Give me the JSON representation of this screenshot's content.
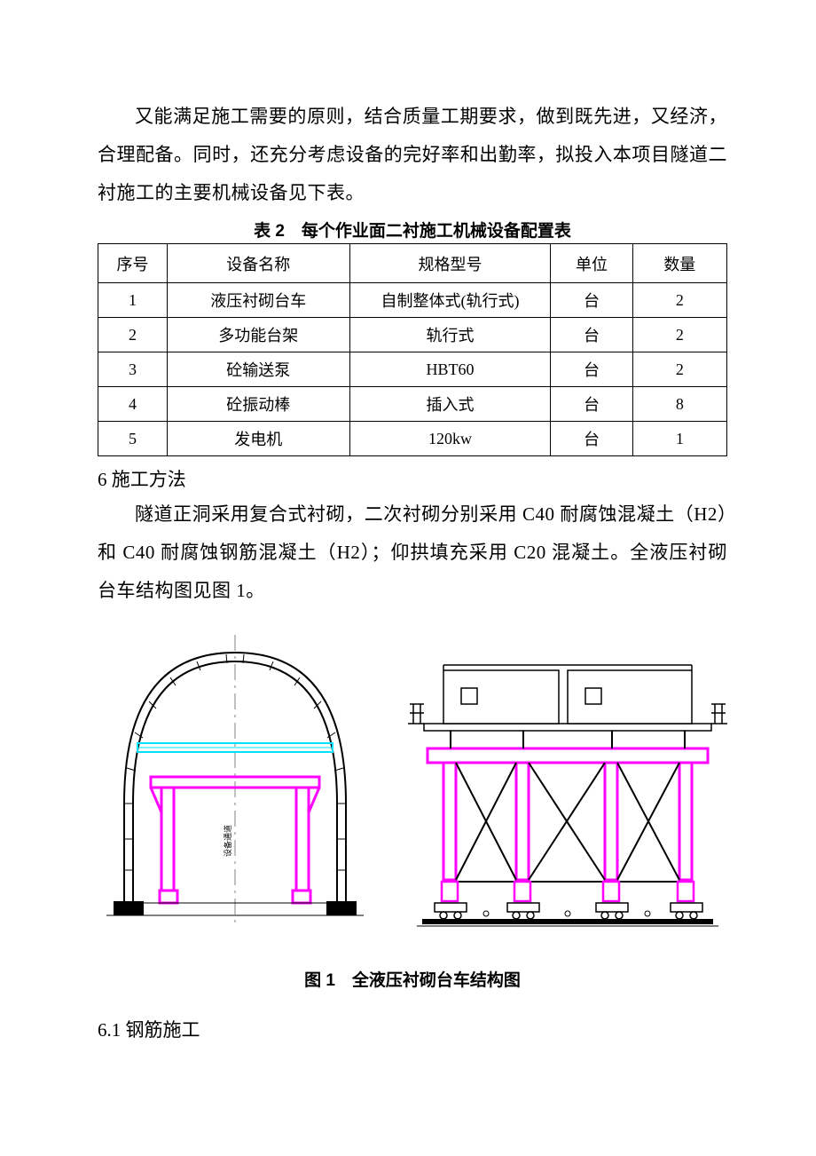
{
  "paragraphs": {
    "intro": "又能满足施工需要的原则，结合质量工期要求，做到既先进，又经济，合理配备。同时，还充分考虑设备的完好率和出勤率，拟投入本项目隧道二衬施工的主要机械设备见下表。",
    "method": "隧道正洞采用复合式衬砌，二次衬砌分别采用 C40 耐腐蚀混凝土（H2）和 C40 耐腐蚀钢筋混凝土（H2）；仰拱填充采用 C20 混凝土。全液压衬砌台车结构图见图 1。"
  },
  "table": {
    "caption": "表 2　每个作业面二衬施工机械设备配置表",
    "headers": {
      "seq": "序号",
      "name": "设备名称",
      "spec": "规格型号",
      "unit": "单位",
      "qty": "数量"
    },
    "rows": [
      {
        "seq": "1",
        "name": "液压衬砌台车",
        "spec": "自制整体式(轨行式)",
        "unit": "台",
        "qty": "2"
      },
      {
        "seq": "2",
        "name": "多功能台架",
        "spec": "轨行式",
        "unit": "台",
        "qty": "2"
      },
      {
        "seq": "3",
        "name": "砼输送泵",
        "spec": "HBT60",
        "unit": "台",
        "qty": "2"
      },
      {
        "seq": "4",
        "name": "砼振动棒",
        "spec": "插入式",
        "unit": "台",
        "qty": "8"
      },
      {
        "seq": "5",
        "name": "发电机",
        "spec": "120kw",
        "unit": "台",
        "qty": "1"
      }
    ]
  },
  "headings": {
    "section6": "6 施工方法",
    "section6_1": "6.1 钢筋施工"
  },
  "figure": {
    "caption": "图 1　全液压衬砌台车结构图",
    "label_vertical": "设备通道",
    "colors": {
      "outline": "#000000",
      "magenta": "#ff00ff",
      "cyan": "#00e0ff",
      "centerline": "#808080",
      "fill": "#ffffff"
    },
    "stroke": {
      "thin": 1,
      "med": 2,
      "heavy": 3
    }
  }
}
